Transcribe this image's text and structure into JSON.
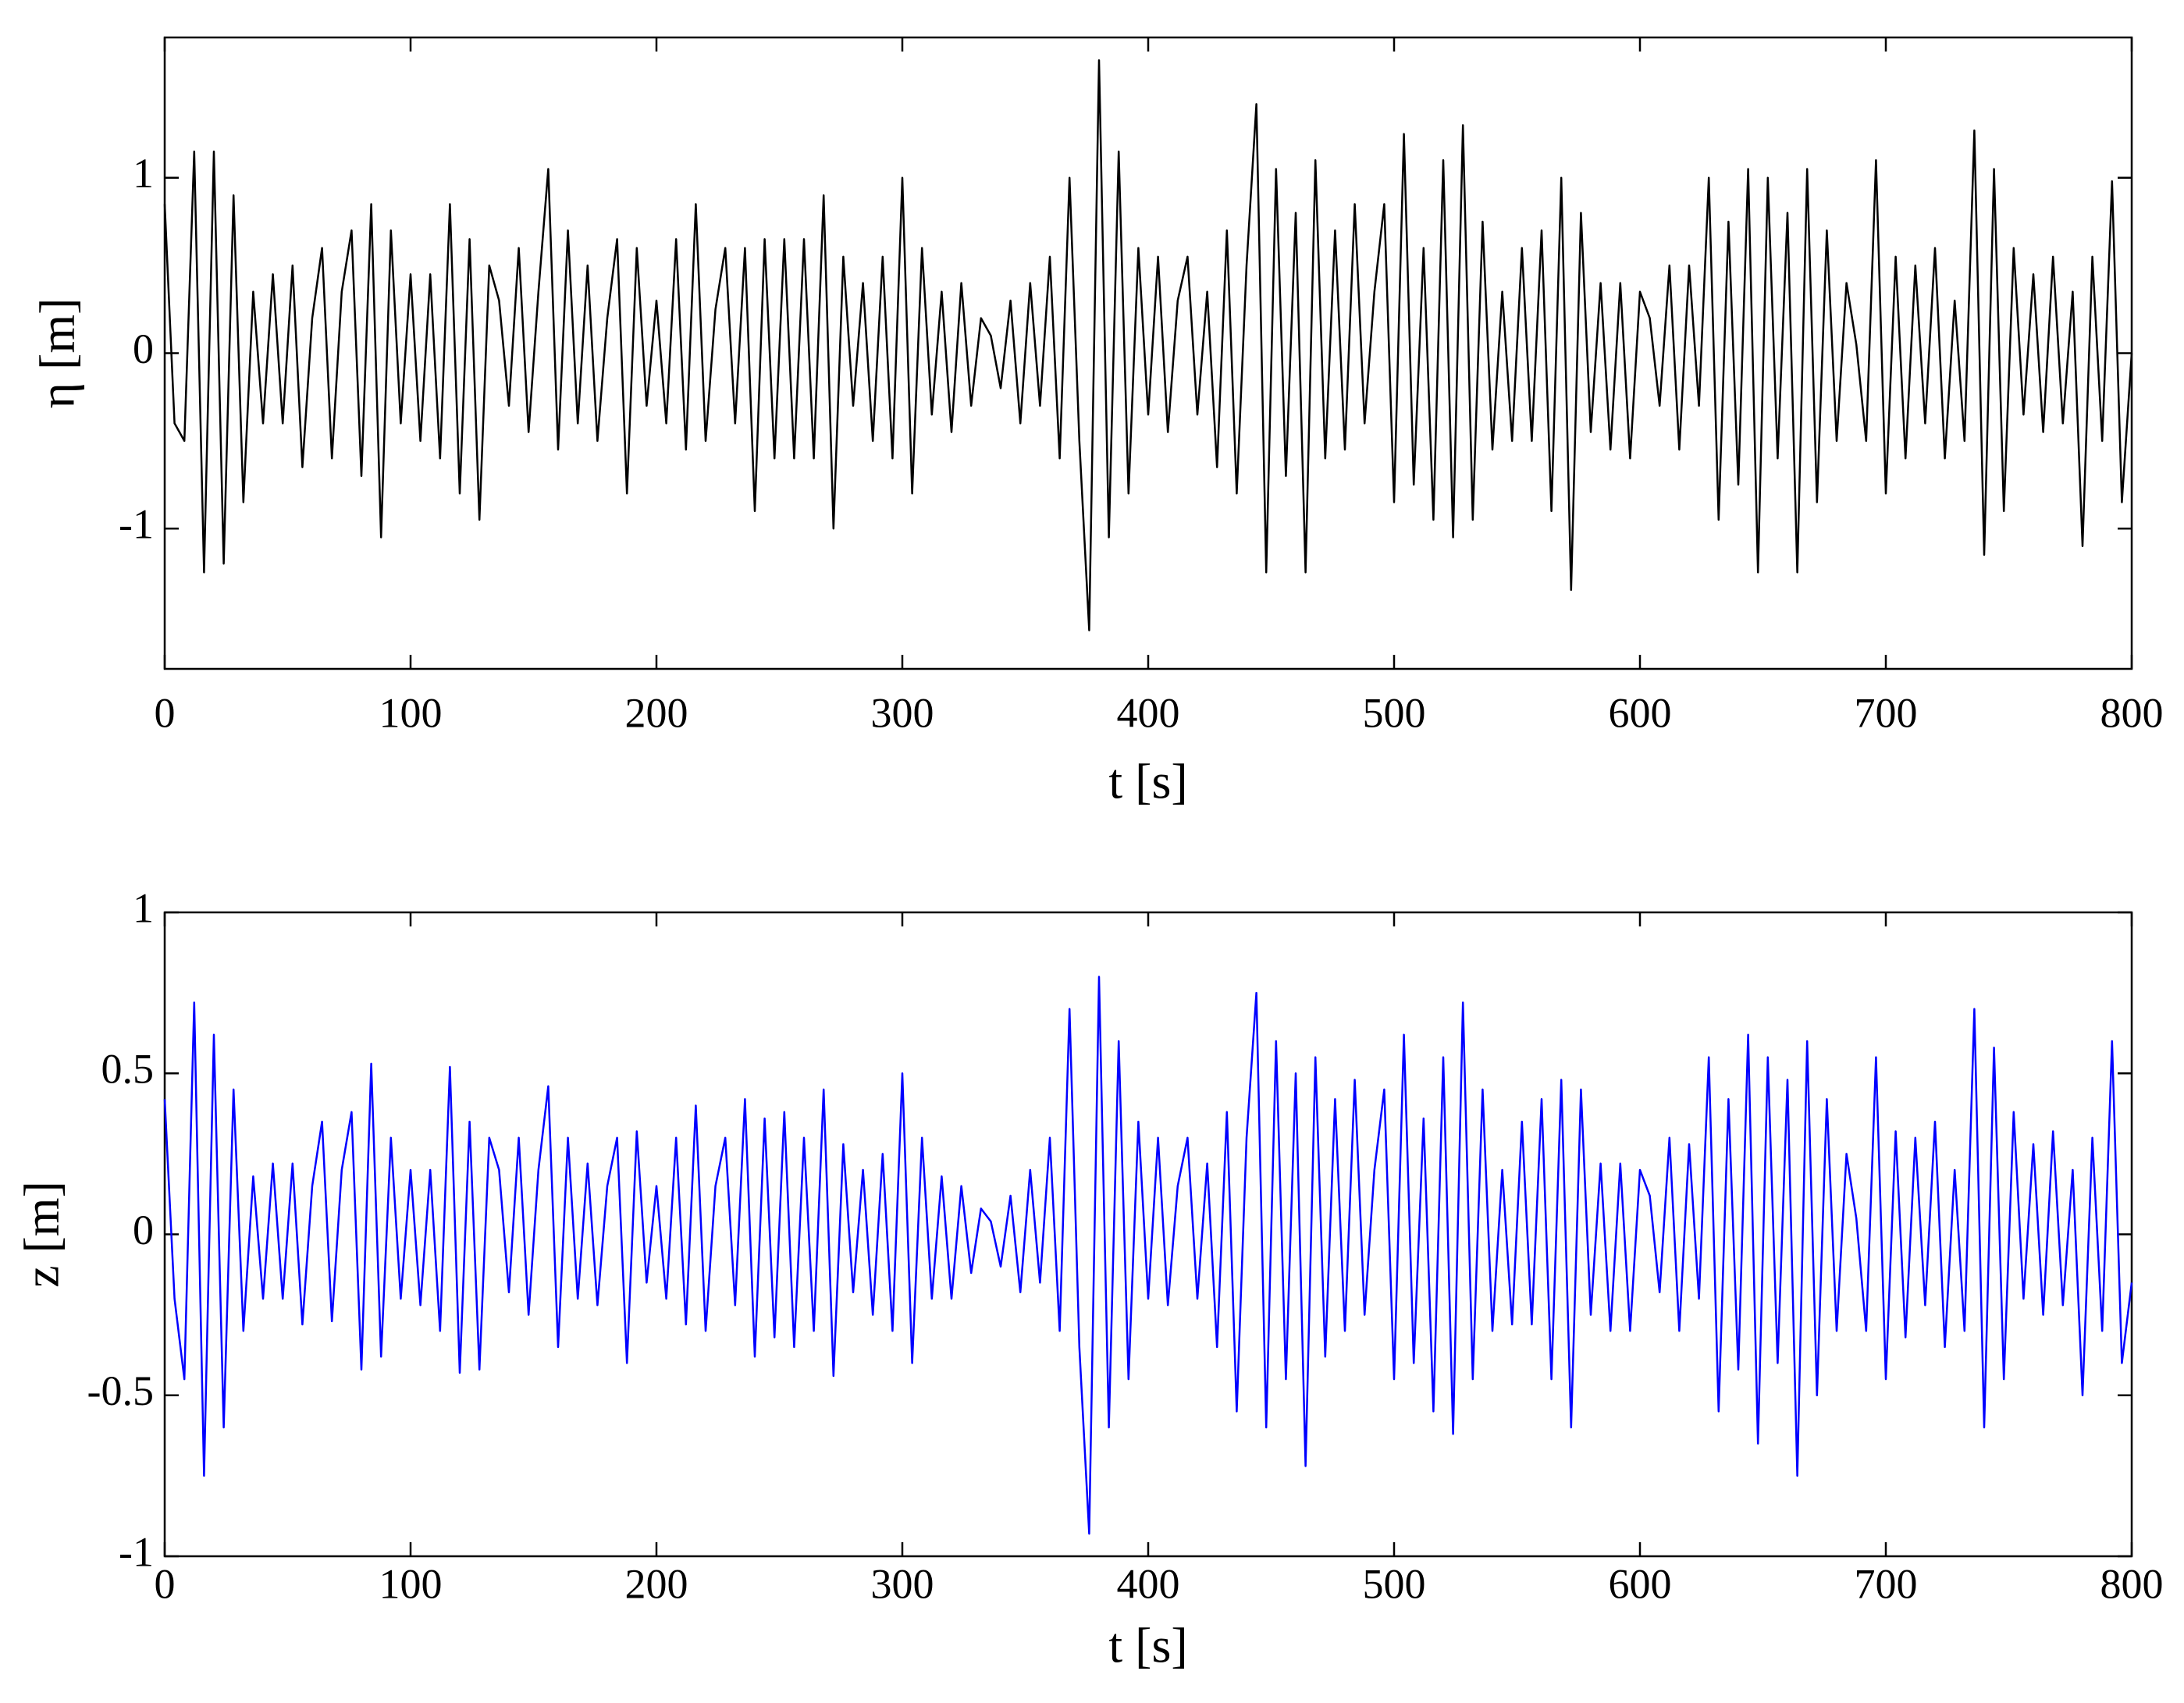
{
  "chart_data": [
    {
      "type": "line",
      "xlabel": "t [s]",
      "ylabel": "η [m]",
      "color": "#000000",
      "xlim": [
        0,
        800
      ],
      "xticks": [
        0,
        100,
        200,
        300,
        400,
        500,
        600,
        700,
        800
      ],
      "ylim": [
        -1.8,
        1.8
      ],
      "yticks": [
        -1,
        0,
        1
      ],
      "x": [
        0,
        4,
        8,
        12,
        16,
        20,
        24,
        28,
        32,
        36,
        40,
        44,
        48,
        52,
        56,
        60,
        64,
        68,
        72,
        76,
        80,
        84,
        88,
        92,
        96,
        100,
        104,
        108,
        112,
        116,
        120,
        124,
        128,
        132,
        136,
        140,
        144,
        148,
        152,
        156,
        160,
        164,
        168,
        172,
        176,
        180,
        184,
        188,
        192,
        196,
        200,
        204,
        208,
        212,
        216,
        220,
        224,
        228,
        232,
        236,
        240,
        244,
        248,
        252,
        256,
        260,
        264,
        268,
        272,
        276,
        280,
        284,
        288,
        292,
        296,
        300,
        304,
        308,
        312,
        316,
        320,
        324,
        328,
        332,
        336,
        340,
        344,
        348,
        352,
        356,
        360,
        364,
        368,
        372,
        376,
        380,
        384,
        388,
        392,
        396,
        400,
        404,
        408,
        412,
        416,
        420,
        424,
        428,
        432,
        436,
        440,
        444,
        448,
        452,
        456,
        460,
        464,
        468,
        472,
        476,
        480,
        484,
        488,
        492,
        496,
        500,
        504,
        508,
        512,
        516,
        520,
        524,
        528,
        532,
        536,
        540,
        544,
        548,
        552,
        556,
        560,
        564,
        568,
        572,
        576,
        580,
        584,
        588,
        592,
        596,
        600,
        604,
        608,
        612,
        616,
        620,
        624,
        628,
        632,
        636,
        640,
        644,
        648,
        652,
        656,
        660,
        664,
        668,
        672,
        676,
        680,
        684,
        688,
        692,
        696,
        700,
        704,
        708,
        712,
        716,
        720,
        724,
        728,
        732,
        736,
        740,
        744,
        748,
        752,
        756,
        760,
        764,
        768,
        772,
        776,
        780,
        784,
        788,
        792,
        796,
        800
      ],
      "values": [
        0.85,
        -0.4,
        -0.5,
        1.15,
        -1.25,
        1.15,
        -1.2,
        0.9,
        -0.85,
        0.35,
        -0.4,
        0.45,
        -0.4,
        0.5,
        -0.65,
        0.2,
        0.6,
        -0.6,
        0.35,
        0.7,
        -0.7,
        0.85,
        -1.05,
        0.7,
        -0.4,
        0.45,
        -0.5,
        0.45,
        -0.6,
        0.85,
        -0.8,
        0.65,
        -0.95,
        0.5,
        0.3,
        -0.3,
        0.6,
        -0.45,
        0.35,
        1.05,
        -0.55,
        0.7,
        -0.4,
        0.5,
        -0.5,
        0.2,
        0.65,
        -0.8,
        0.6,
        -0.3,
        0.3,
        -0.4,
        0.65,
        -0.55,
        0.85,
        -0.5,
        0.25,
        0.6,
        -0.4,
        0.6,
        -0.9,
        0.65,
        -0.6,
        0.65,
        -0.6,
        0.65,
        -0.6,
        0.9,
        -1.0,
        0.55,
        -0.3,
        0.4,
        -0.5,
        0.55,
        -0.6,
        1.0,
        -0.8,
        0.6,
        -0.35,
        0.35,
        -0.45,
        0.4,
        -0.3,
        0.2,
        0.1,
        -0.2,
        0.3,
        -0.4,
        0.4,
        -0.3,
        0.55,
        -0.6,
        1.0,
        -0.5,
        -1.58,
        1.67,
        -1.05,
        1.15,
        -0.8,
        0.6,
        -0.35,
        0.55,
        -0.45,
        0.3,
        0.55,
        -0.35,
        0.35,
        -0.65,
        0.7,
        -0.8,
        0.5,
        1.42,
        -1.25,
        1.05,
        -0.7,
        0.8,
        -1.25,
        1.1,
        -0.6,
        0.7,
        -0.55,
        0.85,
        -0.4,
        0.35,
        0.85,
        -0.85,
        1.25,
        -0.75,
        0.6,
        -0.95,
        1.1,
        -1.05,
        1.3,
        -0.95,
        0.75,
        -0.55,
        0.35,
        -0.5,
        0.6,
        -0.5,
        0.7,
        -0.9,
        1.0,
        -1.35,
        0.8,
        -0.45,
        0.4,
        -0.55,
        0.4,
        -0.6,
        0.35,
        0.2,
        -0.3,
        0.5,
        -0.55,
        0.5,
        -0.3,
        1.0,
        -0.95,
        0.75,
        -0.75,
        1.05,
        -1.25,
        1.0,
        -0.6,
        0.8,
        -1.25,
        1.05,
        -0.85,
        0.7,
        -0.5,
        0.4,
        0.05,
        -0.5,
        1.1,
        -0.8,
        0.55,
        -0.6,
        0.5,
        -0.4,
        0.6,
        -0.6,
        0.3,
        -0.5,
        1.27,
        -1.15,
        1.05,
        -0.9,
        0.6,
        -0.35,
        0.45,
        -0.45,
        0.55,
        -0.4,
        0.35,
        -1.1,
        0.55,
        -0.5,
        0.98,
        -0.85,
        0.0
      ]
    },
    {
      "type": "line",
      "xlabel": "t [s]",
      "ylabel": "z [m]",
      "color": "#0000ff",
      "xlim": [
        0,
        800
      ],
      "xticks": [
        0,
        100,
        200,
        300,
        400,
        500,
        600,
        700,
        800
      ],
      "ylim": [
        -1,
        1
      ],
      "yticks": [
        -1,
        -0.5,
        0,
        0.5,
        1
      ],
      "x": [
        0,
        4,
        8,
        12,
        16,
        20,
        24,
        28,
        32,
        36,
        40,
        44,
        48,
        52,
        56,
        60,
        64,
        68,
        72,
        76,
        80,
        84,
        88,
        92,
        96,
        100,
        104,
        108,
        112,
        116,
        120,
        124,
        128,
        132,
        136,
        140,
        144,
        148,
        152,
        156,
        160,
        164,
        168,
        172,
        176,
        180,
        184,
        188,
        192,
        196,
        200,
        204,
        208,
        212,
        216,
        220,
        224,
        228,
        232,
        236,
        240,
        244,
        248,
        252,
        256,
        260,
        264,
        268,
        272,
        276,
        280,
        284,
        288,
        292,
        296,
        300,
        304,
        308,
        312,
        316,
        320,
        324,
        328,
        332,
        336,
        340,
        344,
        348,
        352,
        356,
        360,
        364,
        368,
        372,
        376,
        380,
        384,
        388,
        392,
        396,
        400,
        404,
        408,
        412,
        416,
        420,
        424,
        428,
        432,
        436,
        440,
        444,
        448,
        452,
        456,
        460,
        464,
        468,
        472,
        476,
        480,
        484,
        488,
        492,
        496,
        500,
        504,
        508,
        512,
        516,
        520,
        524,
        528,
        532,
        536,
        540,
        544,
        548,
        552,
        556,
        560,
        564,
        568,
        572,
        576,
        580,
        584,
        588,
        592,
        596,
        600,
        604,
        608,
        612,
        616,
        620,
        624,
        628,
        632,
        636,
        640,
        644,
        648,
        652,
        656,
        660,
        664,
        668,
        672,
        676,
        680,
        684,
        688,
        692,
        696,
        700,
        704,
        708,
        712,
        716,
        720,
        724,
        728,
        732,
        736,
        740,
        744,
        748,
        752,
        756,
        760,
        764,
        768,
        772,
        776,
        780,
        784,
        788,
        792,
        796,
        800
      ],
      "values": [
        0.42,
        -0.2,
        -0.45,
        0.72,
        -0.75,
        0.62,
        -0.6,
        0.45,
        -0.3,
        0.18,
        -0.2,
        0.22,
        -0.2,
        0.22,
        -0.28,
        0.15,
        0.35,
        -0.27,
        0.2,
        0.38,
        -0.42,
        0.53,
        -0.38,
        0.3,
        -0.2,
        0.2,
        -0.22,
        0.2,
        -0.3,
        0.52,
        -0.43,
        0.35,
        -0.42,
        0.3,
        0.2,
        -0.18,
        0.3,
        -0.25,
        0.2,
        0.46,
        -0.35,
        0.3,
        -0.2,
        0.22,
        -0.22,
        0.15,
        0.3,
        -0.4,
        0.32,
        -0.15,
        0.15,
        -0.2,
        0.3,
        -0.28,
        0.4,
        -0.3,
        0.15,
        0.3,
        -0.22,
        0.42,
        -0.38,
        0.36,
        -0.32,
        0.38,
        -0.35,
        0.3,
        -0.3,
        0.45,
        -0.44,
        0.28,
        -0.18,
        0.2,
        -0.25,
        0.25,
        -0.3,
        0.5,
        -0.4,
        0.3,
        -0.2,
        0.18,
        -0.2,
        0.15,
        -0.12,
        0.08,
        0.04,
        -0.1,
        0.12,
        -0.18,
        0.2,
        -0.15,
        0.3,
        -0.3,
        0.7,
        -0.35,
        -0.93,
        0.8,
        -0.6,
        0.6,
        -0.45,
        0.35,
        -0.2,
        0.3,
        -0.22,
        0.15,
        0.3,
        -0.2,
        0.22,
        -0.35,
        0.38,
        -0.55,
        0.3,
        0.75,
        -0.6,
        0.6,
        -0.45,
        0.5,
        -0.72,
        0.55,
        -0.38,
        0.42,
        -0.3,
        0.48,
        -0.25,
        0.2,
        0.45,
        -0.45,
        0.62,
        -0.4,
        0.36,
        -0.55,
        0.55,
        -0.62,
        0.72,
        -0.45,
        0.45,
        -0.3,
        0.2,
        -0.28,
        0.35,
        -0.28,
        0.42,
        -0.45,
        0.48,
        -0.6,
        0.45,
        -0.25,
        0.22,
        -0.3,
        0.22,
        -0.3,
        0.2,
        0.12,
        -0.18,
        0.3,
        -0.3,
        0.28,
        -0.2,
        0.55,
        -0.55,
        0.42,
        -0.42,
        0.62,
        -0.65,
        0.55,
        -0.4,
        0.48,
        -0.75,
        0.6,
        -0.5,
        0.42,
        -0.3,
        0.25,
        0.05,
        -0.3,
        0.55,
        -0.45,
        0.32,
        -0.32,
        0.3,
        -0.22,
        0.35,
        -0.35,
        0.2,
        -0.3,
        0.7,
        -0.6,
        0.58,
        -0.45,
        0.38,
        -0.2,
        0.28,
        -0.25,
        0.32,
        -0.22,
        0.2,
        -0.5,
        0.3,
        -0.3,
        0.6,
        -0.4,
        -0.15
      ]
    }
  ]
}
